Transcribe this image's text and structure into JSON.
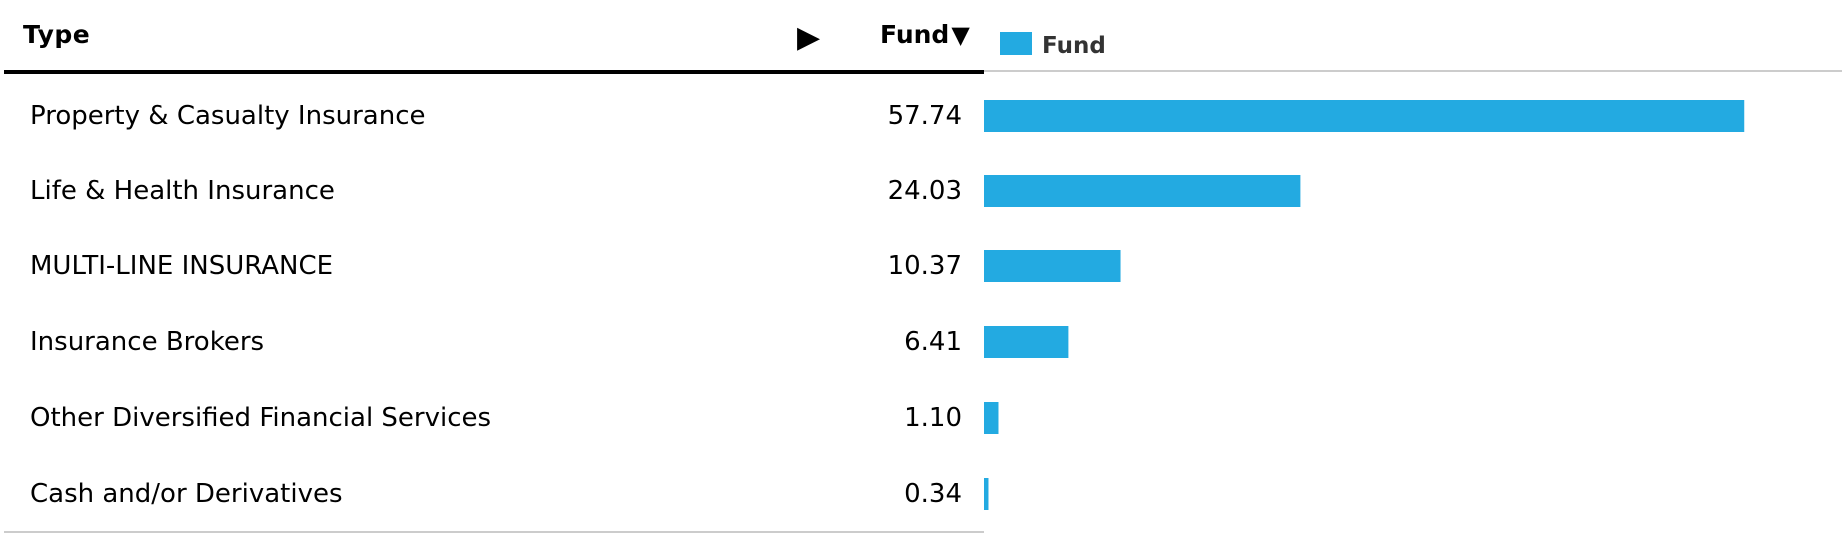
{
  "table": {
    "type_header": "Type",
    "expand_glyph": "▶",
    "fund_header": "Fund",
    "sort_glyph": "▼"
  },
  "chart_data": {
    "type": "bar",
    "orientation": "horizontal",
    "categories": [
      "Property & Casualty Insurance",
      "Life & Health Insurance",
      "MULTI-LINE INSURANCE",
      "Insurance Brokers",
      "Other Diversified Financial Services",
      "Cash and/or Derivatives"
    ],
    "labels": [
      "57.74",
      "24.03",
      "10.37",
      "6.41",
      "1.10",
      "0.34"
    ],
    "series": [
      {
        "name": "Fund",
        "values": [
          57.74,
          24.03,
          10.37,
          6.41,
          1.1,
          0.34
        ],
        "color": "#23aae1"
      }
    ],
    "xlim": [
      0,
      60
    ],
    "grid": false,
    "legend_position": "top-left"
  }
}
